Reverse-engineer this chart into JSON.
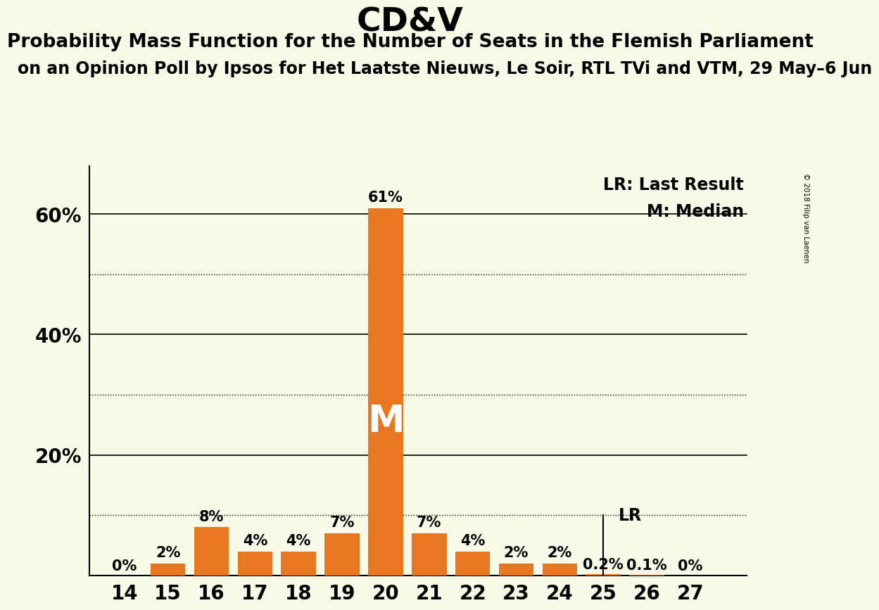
{
  "title": "CD&V",
  "subtitle": "Probability Mass Function for the Number of Seats in the Flemish Parliament",
  "subsubtitle": "on an Opinion Poll by Ipsos for Het Laatste Nieuws, Le Soir, RTL TVi and VTM, 29 May–6 Jun",
  "copyright": "© 2018 Filip van Laenen",
  "seats": [
    14,
    15,
    16,
    17,
    18,
    19,
    20,
    21,
    22,
    23,
    24,
    25,
    26,
    27
  ],
  "probabilities": [
    0.0,
    2.0,
    8.0,
    4.0,
    4.0,
    7.0,
    61.0,
    7.0,
    4.0,
    2.0,
    2.0,
    0.2,
    0.1,
    0.0
  ],
  "bar_color": "#E87722",
  "background_color": "#FAFAE8",
  "median_seat": 20,
  "lr_seat": 25,
  "legend_lr": "LR: Last Result",
  "legend_m": "M: Median",
  "ylabel_ticks": [
    20,
    40,
    60
  ],
  "ylabel_labels": [
    "20%",
    "40%",
    "60%"
  ],
  "solid_gridlines": [
    20,
    40,
    60
  ],
  "dotted_gridlines": [
    10,
    30,
    50
  ],
  "bar_label_fontsize": 15,
  "title_fontsize": 34,
  "subtitle_fontsize": 19,
  "subsubtitle_fontsize": 17
}
